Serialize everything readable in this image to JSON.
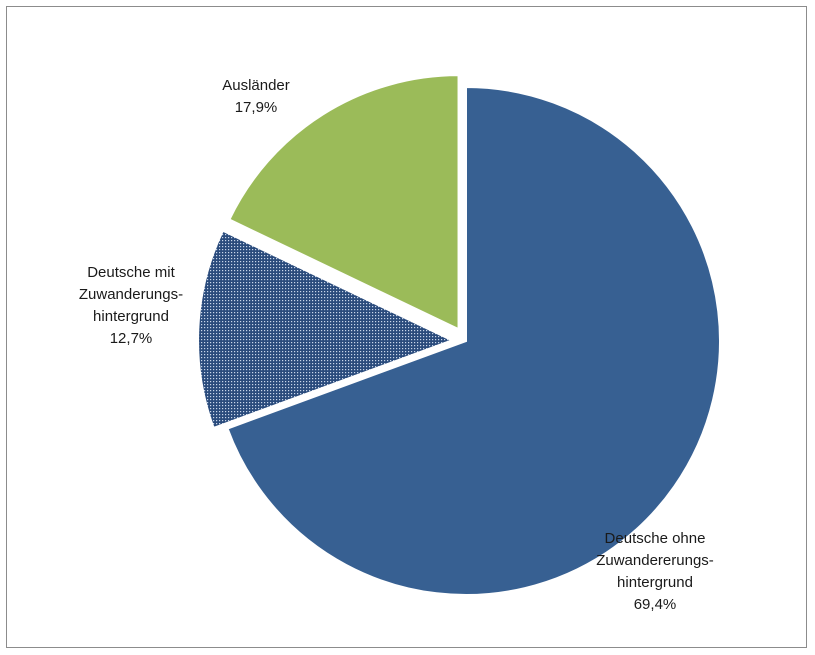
{
  "chart_data": {
    "type": "pie",
    "title": "",
    "start_angle_deg": 0,
    "direction": "clockwise",
    "slices": [
      {
        "label_lines": [
          "Deutsche ohne",
          "Zuwandererungs-",
          "hintergrund"
        ],
        "value": 69.4,
        "value_label": "69,4%",
        "color": "#376092",
        "pattern": "solid",
        "exploded": false
      },
      {
        "label_lines": [
          "Deutsche mit",
          "Zuwanderungs-",
          "hintergrund"
        ],
        "value": 12.7,
        "value_label": "12,7%",
        "color": "#1f3864",
        "pattern": "dotted",
        "exploded": true
      },
      {
        "label_lines": [
          "Ausländer"
        ],
        "value": 17.9,
        "value_label": "17,9%",
        "color": "#9bbb59",
        "pattern": "solid",
        "exploded": true
      }
    ]
  }
}
